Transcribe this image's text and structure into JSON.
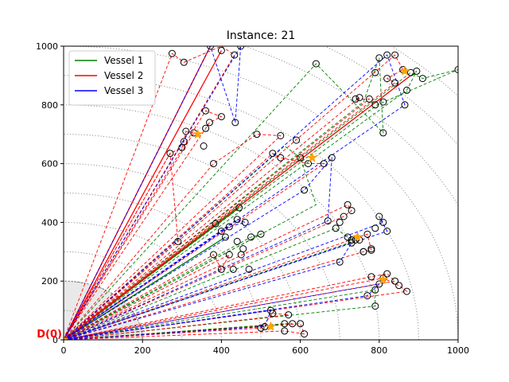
{
  "chart_data": {
    "type": "scatter",
    "title": "Instance: 21",
    "xlim": [
      0,
      1000
    ],
    "ylim": [
      0,
      1000
    ],
    "x_ticks": [
      "0",
      "200",
      "400",
      "600",
      "800",
      "1000"
    ],
    "y_ticks": [
      "0",
      "200",
      "400",
      "600",
      "800",
      "1000"
    ],
    "depot_label": "D(0)",
    "depot": [
      0,
      0
    ],
    "depot_zone_radius": 200,
    "arc_radii": [
      100,
      200,
      300,
      400,
      500,
      600,
      700,
      800,
      900,
      1000,
      1100,
      1200,
      1300
    ],
    "legend": {
      "location": "top-left",
      "entries": [
        {
          "name": "Vessel 1",
          "color": "#008000"
        },
        {
          "name": "Vessel 2",
          "color": "#ff0000"
        },
        {
          "name": "Vessel 3",
          "color": "#0000ff"
        }
      ]
    },
    "customers": [
      [
        275,
        975
      ],
      [
        305,
        945
      ],
      [
        372,
        1000
      ],
      [
        400,
        985
      ],
      [
        433,
        970
      ],
      [
        449,
        1000
      ],
      [
        640,
        940
      ],
      [
        800,
        960
      ],
      [
        820,
        970
      ],
      [
        840,
        970
      ],
      [
        860,
        920
      ],
      [
        880,
        910
      ],
      [
        895,
        915
      ],
      [
        910,
        890
      ],
      [
        1000,
        920
      ],
      [
        790,
        910
      ],
      [
        820,
        890
      ],
      [
        840,
        875
      ],
      [
        870,
        850
      ],
      [
        865,
        800
      ],
      [
        810,
        810
      ],
      [
        775,
        820
      ],
      [
        790,
        800
      ],
      [
        740,
        820
      ],
      [
        750,
        825
      ],
      [
        270,
        635
      ],
      [
        300,
        655
      ],
      [
        305,
        675
      ],
      [
        310,
        710
      ],
      [
        330,
        705
      ],
      [
        355,
        660
      ],
      [
        360,
        720
      ],
      [
        370,
        740
      ],
      [
        360,
        780
      ],
      [
        400,
        760
      ],
      [
        435,
        740
      ],
      [
        380,
        600
      ],
      [
        490,
        700
      ],
      [
        550,
        695
      ],
      [
        590,
        680
      ],
      [
        600,
        620
      ],
      [
        530,
        635
      ],
      [
        550,
        620
      ],
      [
        620,
        600
      ],
      [
        660,
        600
      ],
      [
        680,
        620
      ],
      [
        810,
        705
      ],
      [
        385,
        395
      ],
      [
        410,
        350
      ],
      [
        400,
        370
      ],
      [
        420,
        385
      ],
      [
        440,
        410
      ],
      [
        460,
        400
      ],
      [
        445,
        450
      ],
      [
        475,
        350
      ],
      [
        500,
        360
      ],
      [
        290,
        335
      ],
      [
        380,
        290
      ],
      [
        400,
        240
      ],
      [
        420,
        290
      ],
      [
        440,
        335
      ],
      [
        455,
        310
      ],
      [
        450,
        290
      ],
      [
        470,
        240
      ],
      [
        430,
        240
      ],
      [
        610,
        510
      ],
      [
        670,
        405
      ],
      [
        690,
        380
      ],
      [
        710,
        420
      ],
      [
        730,
        440
      ],
      [
        720,
        460
      ],
      [
        700,
        400
      ],
      [
        720,
        350
      ],
      [
        740,
        340
      ],
      [
        760,
        300
      ],
      [
        780,
        310
      ],
      [
        770,
        360
      ],
      [
        790,
        380
      ],
      [
        800,
        420
      ],
      [
        810,
        400
      ],
      [
        820,
        370
      ],
      [
        700,
        265
      ],
      [
        730,
        330
      ],
      [
        750,
        340
      ],
      [
        760,
        300
      ],
      [
        780,
        305
      ],
      [
        730,
        340
      ],
      [
        780,
        215
      ],
      [
        800,
        190
      ],
      [
        810,
        210
      ],
      [
        820,
        225
      ],
      [
        790,
        170
      ],
      [
        770,
        150
      ],
      [
        790,
        115
      ],
      [
        840,
        200
      ],
      [
        870,
        165
      ],
      [
        850,
        185
      ],
      [
        500,
        40
      ],
      [
        510,
        45
      ],
      [
        530,
        90
      ],
      [
        560,
        55
      ],
      [
        570,
        85
      ],
      [
        580,
        55
      ],
      [
        600,
        55
      ],
      [
        610,
        20
      ],
      [
        560,
        30
      ],
      [
        525,
        100
      ]
    ],
    "depots": [
      {
        "name": "D(0)",
        "point": [
          0,
          0
        ]
      },
      {
        "name": "",
        "point": [
          340,
          700
        ]
      },
      {
        "name": "",
        "point": [
          865,
          915
        ]
      },
      {
        "name": "",
        "point": [
          630,
          620
        ]
      },
      {
        "name": "",
        "point": [
          745,
          350
        ]
      },
      {
        "name": "",
        "point": [
          810,
          205
        ]
      },
      {
        "name": "",
        "point": [
          525,
          45
        ]
      }
    ],
    "routes": [
      {
        "vessel": "Vessel 1",
        "style": "solid",
        "points": [
          [
            0,
            0
          ],
          [
            445,
            450
          ],
          [
            0,
            0
          ],
          [
            410,
            350
          ],
          [
            0,
            0
          ]
        ]
      },
      {
        "vessel": "Vessel 1",
        "style": "dashed",
        "points": [
          [
            0,
            0
          ],
          [
            880,
            910
          ],
          [
            910,
            890
          ],
          [
            1000,
            920
          ],
          [
            795,
            800
          ],
          [
            0,
            0
          ]
        ]
      },
      {
        "vessel": "Vessel 1",
        "style": "dashed",
        "points": [
          [
            0,
            0
          ],
          [
            760,
            810
          ],
          [
            800,
            960
          ],
          [
            810,
            705
          ],
          [
            640,
            940
          ],
          [
            0,
            0
          ]
        ]
      },
      {
        "vessel": "Vessel 1",
        "style": "dashed",
        "points": [
          [
            0,
            0
          ],
          [
            690,
            380
          ],
          [
            720,
            350
          ],
          [
            745,
            340
          ],
          [
            0,
            0
          ]
        ]
      },
      {
        "vessel": "Vessel 1",
        "style": "dashed",
        "points": [
          [
            0,
            0
          ],
          [
            475,
            350
          ],
          [
            500,
            360
          ],
          [
            0,
            0
          ]
        ]
      },
      {
        "vessel": "Vessel 1",
        "style": "dashed",
        "points": [
          [
            0,
            0
          ],
          [
            560,
            660
          ],
          [
            600,
            620
          ],
          [
            640,
            460
          ],
          [
            0,
            0
          ]
        ]
      },
      {
        "vessel": "Vessel 1",
        "style": "dashed",
        "points": [
          [
            0,
            0
          ],
          [
            790,
            170
          ],
          [
            790,
            115
          ],
          [
            0,
            0
          ]
        ]
      },
      {
        "vessel": "Vessel 1",
        "style": "dashed",
        "points": [
          [
            0,
            0
          ],
          [
            560,
            55
          ],
          [
            580,
            55
          ],
          [
            0,
            0
          ]
        ]
      },
      {
        "vessel": "Vessel 1",
        "style": "dashed",
        "points": [
          [
            0,
            0
          ],
          [
            870,
            850
          ],
          [
            895,
            915
          ],
          [
            0,
            0
          ]
        ]
      },
      {
        "vessel": "Vessel 2",
        "style": "solid",
        "points": [
          [
            0,
            0
          ],
          [
            372,
            1000
          ],
          [
            0,
            0
          ],
          [
            400,
            985
          ],
          [
            0,
            0
          ]
        ]
      },
      {
        "vessel": "Vessel 2",
        "style": "solid",
        "points": [
          [
            0,
            0
          ],
          [
            880,
            900
          ],
          [
            0,
            0
          ]
        ]
      },
      {
        "vessel": "Vessel 2",
        "style": "dashed",
        "points": [
          [
            0,
            0
          ],
          [
            275,
            975
          ],
          [
            305,
            945
          ],
          [
            400,
            1000
          ],
          [
            433,
            970
          ],
          [
            0,
            0
          ]
        ]
      },
      {
        "vessel": "Vessel 2",
        "style": "dashed",
        "points": [
          [
            0,
            0
          ],
          [
            270,
            635
          ],
          [
            300,
            655
          ],
          [
            305,
            675
          ],
          [
            310,
            710
          ],
          [
            330,
            705
          ],
          [
            0,
            0
          ]
        ]
      },
      {
        "vessel": "Vessel 2",
        "style": "dashed",
        "points": [
          [
            0,
            0
          ],
          [
            360,
            720
          ],
          [
            370,
            740
          ],
          [
            400,
            760
          ],
          [
            360,
            780
          ],
          [
            0,
            0
          ]
        ]
      },
      {
        "vessel": "Vessel 2",
        "style": "dashed",
        "points": [
          [
            0,
            0
          ],
          [
            290,
            335
          ],
          [
            270,
            635
          ],
          [
            0,
            0
          ]
        ]
      },
      {
        "vessel": "Vessel 2",
        "style": "dashed",
        "points": [
          [
            0,
            0
          ],
          [
            840,
            970
          ],
          [
            860,
            920
          ],
          [
            820,
            890
          ],
          [
            840,
            875
          ],
          [
            0,
            0
          ]
        ]
      },
      {
        "vessel": "Vessel 2",
        "style": "dashed",
        "points": [
          [
            0,
            0
          ],
          [
            750,
            825
          ],
          [
            740,
            820
          ],
          [
            775,
            820
          ],
          [
            0,
            0
          ]
        ]
      },
      {
        "vessel": "Vessel 2",
        "style": "dashed",
        "points": [
          [
            0,
            0
          ],
          [
            530,
            635
          ],
          [
            550,
            620
          ],
          [
            620,
            600
          ],
          [
            660,
            600
          ],
          [
            0,
            0
          ]
        ]
      },
      {
        "vessel": "Vessel 2",
        "style": "dashed",
        "points": [
          [
            0,
            0
          ],
          [
            380,
            600
          ],
          [
            490,
            700
          ],
          [
            550,
            695
          ],
          [
            0,
            0
          ]
        ]
      },
      {
        "vessel": "Vessel 2",
        "style": "dashed",
        "points": [
          [
            0,
            0
          ],
          [
            720,
            460
          ],
          [
            730,
            440
          ],
          [
            710,
            420
          ],
          [
            0,
            0
          ]
        ]
      },
      {
        "vessel": "Vessel 2",
        "style": "dashed",
        "points": [
          [
            0,
            0
          ],
          [
            760,
            300
          ],
          [
            780,
            305
          ],
          [
            770,
            360
          ],
          [
            0,
            0
          ]
        ]
      },
      {
        "vessel": "Vessel 2",
        "style": "dashed",
        "points": [
          [
            0,
            0
          ],
          [
            380,
            290
          ],
          [
            400,
            240
          ],
          [
            420,
            290
          ],
          [
            0,
            0
          ]
        ]
      },
      {
        "vessel": "Vessel 2",
        "style": "dashed",
        "points": [
          [
            0,
            0
          ],
          [
            780,
            215
          ],
          [
            820,
            225
          ],
          [
            840,
            200
          ],
          [
            0,
            0
          ]
        ]
      },
      {
        "vessel": "Vessel 2",
        "style": "dashed",
        "points": [
          [
            0,
            0
          ],
          [
            870,
            165
          ],
          [
            850,
            185
          ],
          [
            810,
            210
          ],
          [
            0,
            0
          ]
        ]
      },
      {
        "vessel": "Vessel 2",
        "style": "dashed",
        "points": [
          [
            0,
            0
          ],
          [
            500,
            40
          ],
          [
            530,
            90
          ],
          [
            570,
            85
          ],
          [
            0,
            0
          ]
        ]
      },
      {
        "vessel": "Vessel 2",
        "style": "dashed",
        "points": [
          [
            0,
            0
          ],
          [
            600,
            55
          ],
          [
            610,
            20
          ],
          [
            560,
            30
          ],
          [
            0,
            0
          ]
        ]
      },
      {
        "vessel": "Vessel 3",
        "style": "dashed",
        "points": [
          [
            0,
            0
          ],
          [
            372,
            1000
          ],
          [
            435,
            740
          ],
          [
            449,
            1000
          ],
          [
            0,
            0
          ]
        ]
      },
      {
        "vessel": "Vessel 3",
        "style": "dashed",
        "points": [
          [
            0,
            0
          ],
          [
            865,
            800
          ],
          [
            820,
            970
          ],
          [
            0,
            0
          ]
        ]
      },
      {
        "vessel": "Vessel 3",
        "style": "dashed",
        "points": [
          [
            0,
            0
          ],
          [
            610,
            510
          ],
          [
            680,
            620
          ],
          [
            670,
            405
          ],
          [
            0,
            0
          ]
        ]
      },
      {
        "vessel": "Vessel 3",
        "style": "dashed",
        "points": [
          [
            0,
            0
          ],
          [
            700,
            265
          ],
          [
            730,
            330
          ],
          [
            0,
            0
          ]
        ]
      },
      {
        "vessel": "Vessel 3",
        "style": "dashed",
        "points": [
          [
            0,
            0
          ],
          [
            420,
            385
          ],
          [
            460,
            400
          ],
          [
            440,
            410
          ],
          [
            0,
            0
          ]
        ]
      },
      {
        "vessel": "Vessel 3",
        "style": "dashed",
        "points": [
          [
            0,
            0
          ],
          [
            810,
            400
          ],
          [
            800,
            420
          ],
          [
            820,
            370
          ],
          [
            0,
            0
          ]
        ]
      },
      {
        "vessel": "Vessel 3",
        "style": "dashed",
        "points": [
          [
            0,
            0
          ],
          [
            770,
            150
          ],
          [
            800,
            190
          ],
          [
            0,
            0
          ]
        ]
      },
      {
        "vessel": "Vessel 3",
        "style": "dashed",
        "points": [
          [
            0,
            0
          ],
          [
            510,
            45
          ],
          [
            525,
            100
          ],
          [
            0,
            0
          ]
        ]
      }
    ]
  }
}
